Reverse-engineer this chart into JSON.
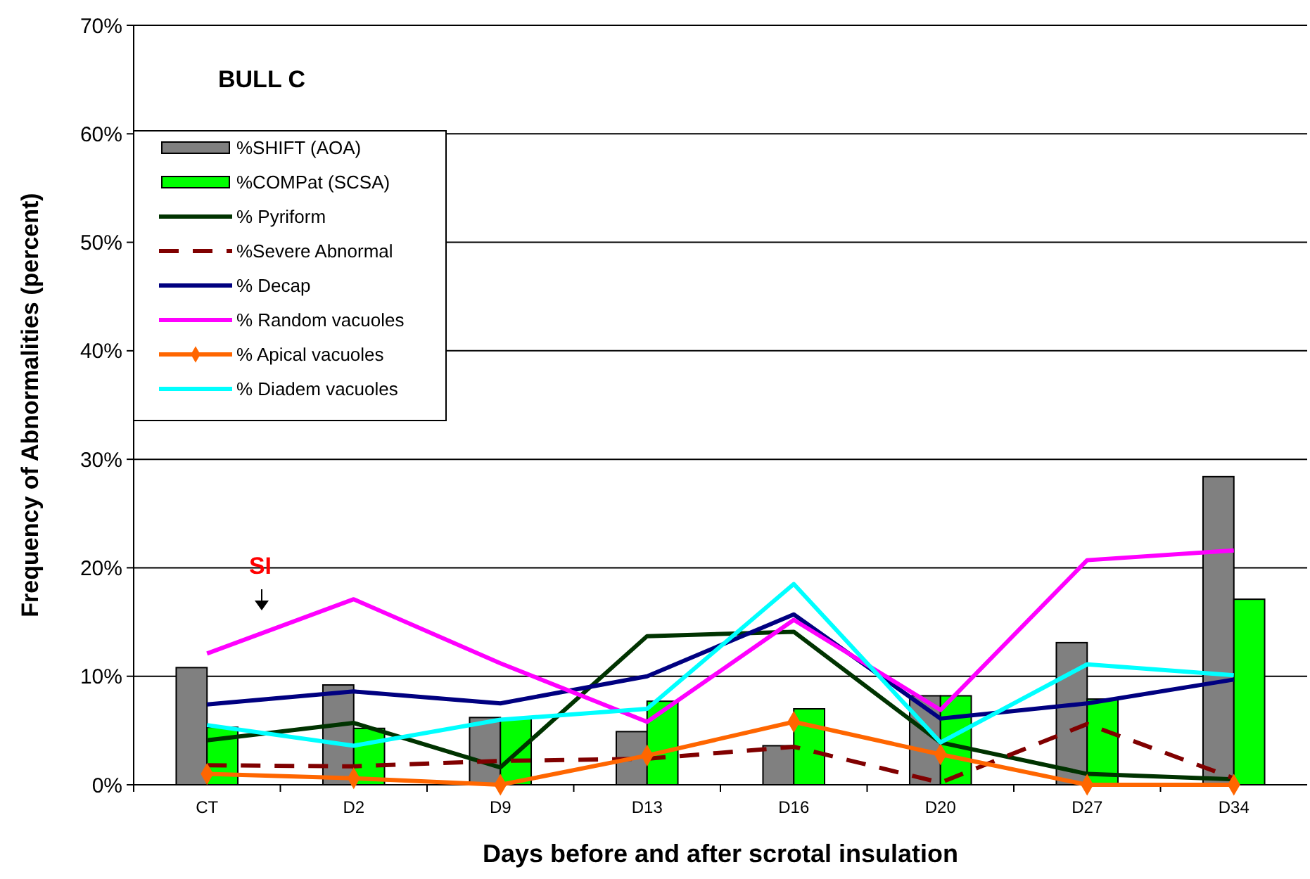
{
  "chart_data": {
    "type": "bar",
    "title": "BULL C",
    "xlabel": "Days before and after scrotal insulation",
    "ylabel": "Frequency of Abnormalities (percent)",
    "categories": [
      "CT",
      "D2",
      "D9",
      "D13",
      "D16",
      "D20",
      "D27",
      "D34"
    ],
    "series": [
      {
        "name": "%SHIFT (AOA)",
        "color": "#808080",
        "values": [
          10.8,
          9.2,
          6.2,
          4.9,
          3.6,
          8.2,
          13.1,
          28.4
        ]
      },
      {
        "name": "%COMPat (SCSA)",
        "color": "#00ff00",
        "values": [
          5.3,
          5.2,
          6.1,
          7.7,
          7.0,
          8.2,
          7.9,
          17.1
        ]
      },
      {
        "name": "% Pyriform",
        "type": "line",
        "color": "#003300",
        "values": [
          4.1,
          5.7,
          1.6,
          13.7,
          14.1,
          3.9,
          1.0,
          0.5
        ]
      },
      {
        "name": "%Severe Abnormal",
        "type": "line",
        "color": "#800000",
        "line_style": "dashed",
        "values": [
          1.8,
          1.7,
          2.2,
          2.4,
          3.5,
          0.2,
          5.6,
          0.6
        ]
      },
      {
        "name": "% Decap",
        "type": "line",
        "color": "#000080",
        "values": [
          7.4,
          8.6,
          7.5,
          10.0,
          15.7,
          6.1,
          7.5,
          9.7
        ]
      },
      {
        "name": "% Random vacuoles",
        "type": "line",
        "color": "#ff00ff",
        "values": [
          12.1,
          17.1,
          11.2,
          5.8,
          15.2,
          6.9,
          20.7,
          21.6
        ]
      },
      {
        "name": "% Apical vacuoles",
        "type": "line",
        "color": "#ff6600",
        "marker": "diamond",
        "values": [
          1.0,
          0.6,
          0,
          2.7,
          5.8,
          2.8,
          0,
          0
        ]
      },
      {
        "name": "% Diadem vacuoles",
        "type": "line",
        "color": "#00ffff",
        "values": [
          5.5,
          3.6,
          6.0,
          7.0,
          18.5,
          3.9,
          11.1,
          10.1
        ]
      }
    ],
    "ylim": [
      0,
      70
    ],
    "yticks": [
      {
        "value": 0,
        "label": "0%"
      },
      {
        "value": 10,
        "label": "10%"
      },
      {
        "value": 20,
        "label": "20%"
      },
      {
        "value": 30,
        "label": "30%"
      },
      {
        "value": 40,
        "label": "40%"
      },
      {
        "value": 50,
        "label": "50%"
      },
      {
        "value": 60,
        "label": "60%"
      },
      {
        "value": 70,
        "label": "70%"
      }
    ],
    "grid": "y",
    "legend": "top left",
    "annotations": [
      "SI"
    ]
  }
}
